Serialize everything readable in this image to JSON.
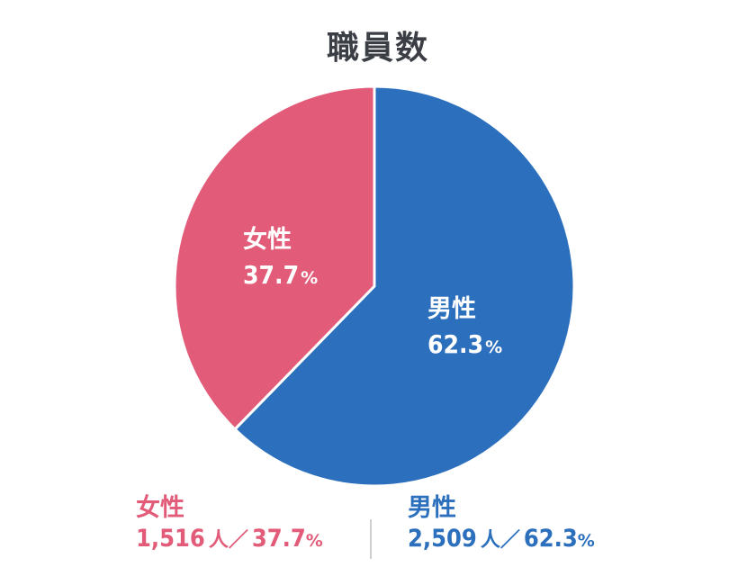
{
  "title": "職員数",
  "colors": {
    "female": "#e25c79",
    "male": "#2b6fbd"
  },
  "chart_data": {
    "type": "pie",
    "title": "職員数",
    "slices": [
      {
        "name": "男性",
        "value": 2509,
        "percent": 62.3,
        "percent_label": "62.3",
        "color": "#2b6fbd"
      },
      {
        "name": "女性",
        "value": 1516,
        "percent": 37.7,
        "percent_label": "37.7",
        "color": "#e25c79"
      }
    ],
    "start_angle": "12 o'clock",
    "direction": "clockwise"
  },
  "summary": {
    "female": {
      "name": "女性",
      "count": "1,516",
      "unit": "人／",
      "percent": "37.7",
      "pct_sign": "%"
    },
    "male": {
      "name": "男性",
      "count": "2,509",
      "unit": "人／",
      "percent": "62.3",
      "pct_sign": "%"
    }
  },
  "percent_sign": "%"
}
